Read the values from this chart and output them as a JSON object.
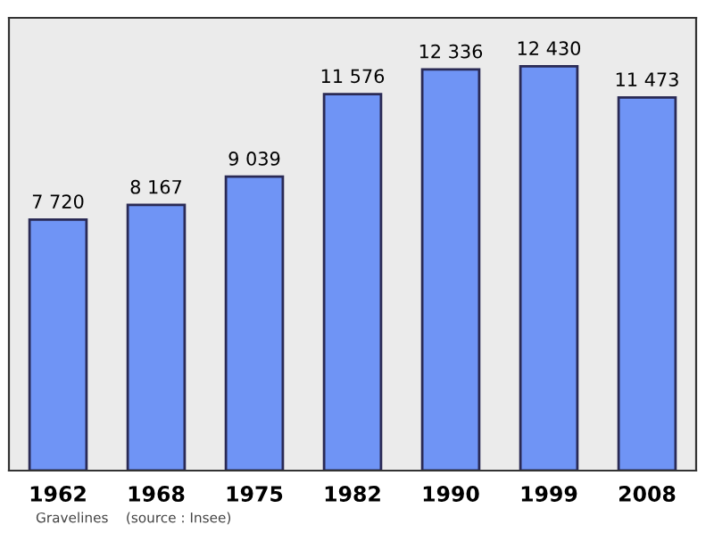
{
  "chart_data": {
    "type": "bar",
    "categories": [
      "1962",
      "1968",
      "1975",
      "1982",
      "1990",
      "1999",
      "2008"
    ],
    "values": [
      7720,
      8167,
      9039,
      11576,
      12336,
      12430,
      11473
    ],
    "value_labels": [
      "7 720",
      "8 167",
      "9 039",
      "11 576",
      "12 336",
      "12 430",
      "11 473"
    ],
    "color": "#6f94f5",
    "grid": false,
    "legend": false,
    "annotations": [
      "Gravelines    (source : Insee)"
    ]
  }
}
